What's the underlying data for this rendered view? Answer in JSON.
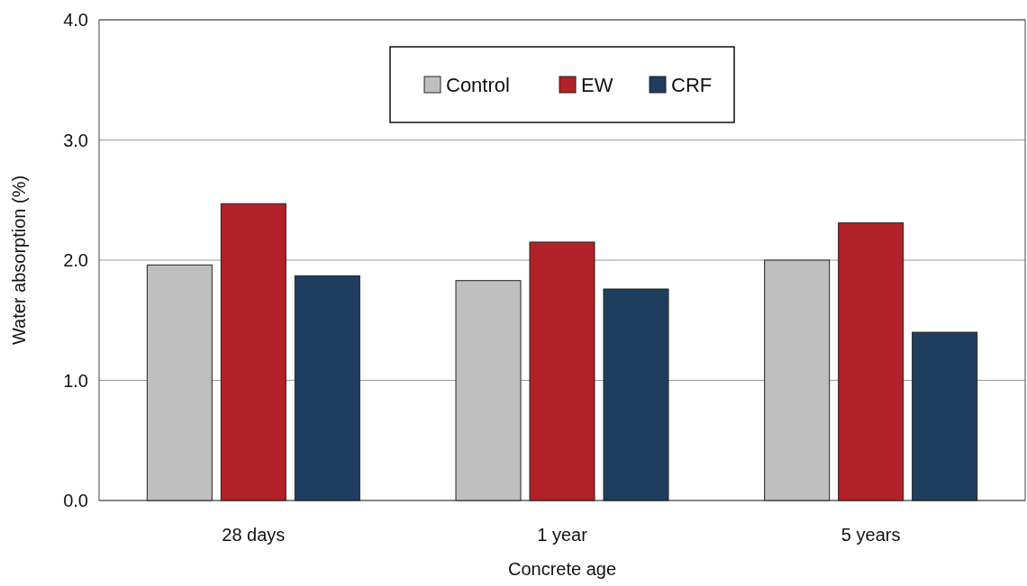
{
  "chart_data": {
    "type": "bar",
    "xlabel": "Concrete age",
    "ylabel": "Water absorption (%)",
    "categories": [
      "28 days",
      "1 year",
      "5 years"
    ],
    "series": [
      {
        "name": "Control",
        "color": "#bfbfbf",
        "values": [
          1.96,
          1.83,
          2.0
        ]
      },
      {
        "name": "EW",
        "color": "#b22028",
        "values": [
          2.47,
          2.15,
          2.31
        ]
      },
      {
        "name": "CRF",
        "color": "#1f3d5e",
        "values": [
          1.87,
          1.76,
          1.4
        ]
      }
    ],
    "ylim": [
      0,
      4
    ],
    "yticks": [
      {
        "value": 0,
        "label": "0.0"
      },
      {
        "value": 1,
        "label": "1.0"
      },
      {
        "value": 2,
        "label": "2.0"
      },
      {
        "value": 3,
        "label": "3.0"
      },
      {
        "value": 4,
        "label": "4.0"
      }
    ],
    "grid": "y",
    "legend": "top"
  }
}
